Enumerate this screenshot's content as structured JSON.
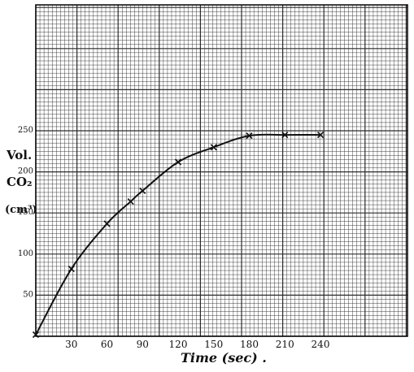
{
  "chart_data": {
    "type": "line",
    "title": "",
    "xlabel": "Time (sec) .",
    "ylabel_lines": [
      "Vol.",
      "CO₂",
      "(cm³)"
    ],
    "x_ticks": [
      "30",
      "60",
      "90",
      "120",
      "150",
      "180",
      "210",
      "240"
    ],
    "y_ticks": [
      "50",
      "100",
      "150",
      "200",
      "250"
    ],
    "xlim": [
      0,
      270
    ],
    "ylim": [
      0,
      300
    ],
    "grid": true,
    "marker": "x",
    "series": [
      {
        "x": [
          0,
          30,
          60,
          80,
          90,
          120,
          150,
          180,
          210,
          240
        ],
        "y": [
          0,
          80,
          135,
          162,
          175,
          210,
          228,
          242,
          243,
          243
        ]
      }
    ],
    "curve_colour": "#111111",
    "grid_colour": "#2b2b2b"
  }
}
